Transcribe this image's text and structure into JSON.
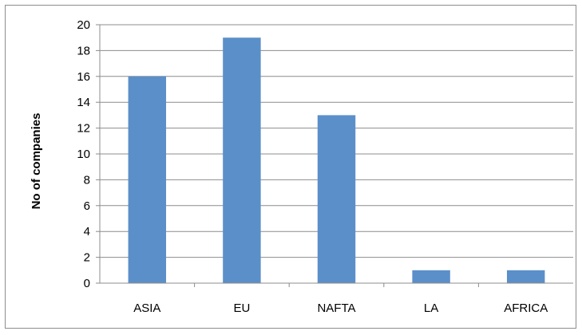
{
  "chart_data": {
    "type": "bar",
    "title": "",
    "xlabel": "",
    "ylabel": "No of companies",
    "categories": [
      "ASIA",
      "EU",
      "NAFTA",
      "LA",
      "AFRICA"
    ],
    "values": [
      16,
      19,
      13,
      1,
      1
    ],
    "ylim": [
      0,
      20
    ],
    "yticks": [
      0,
      2,
      4,
      6,
      8,
      10,
      12,
      14,
      16,
      18,
      20
    ],
    "grid": true,
    "legend": "none",
    "bar_color": "#5b8fc9",
    "grid_color": "#8c8c8c"
  }
}
